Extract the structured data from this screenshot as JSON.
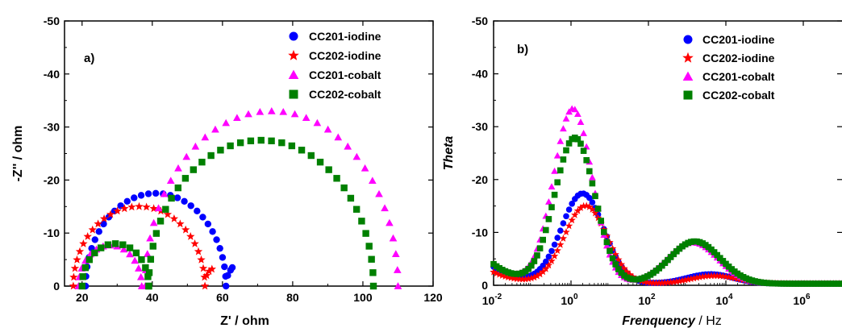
{
  "colors": {
    "CC201-iodine": "#0000ff",
    "CC202-iodine": "#ff0000",
    "CC201-cobalt": "#ff00ff",
    "CC202-cobalt": "#008000"
  },
  "chart_data": [
    {
      "type": "scatter",
      "panel": "a)",
      "xlabel": "Z' / ohm",
      "ylabel": "-Z'' / ohm",
      "xlim": [
        15,
        120
      ],
      "ylim": [
        0,
        -50
      ],
      "xticks": [
        20,
        40,
        60,
        80,
        100,
        120
      ],
      "yticks": [
        0,
        -10,
        -20,
        -30,
        -40,
        -50
      ],
      "legend_position": "top-right",
      "series": [
        {
          "name": "CC201-iodine",
          "marker": "circle",
          "arcs": [
            {
              "x_start": 21,
              "x_end": 61,
              "peak": 17.5,
              "n": 30
            }
          ],
          "tail": [
            [
              61.5,
              2.0
            ],
            [
              62.3,
              3.0
            ],
            [
              62.8,
              3.5
            ]
          ]
        },
        {
          "name": "CC202-iodine",
          "marker": "star",
          "arcs": [
            {
              "x_start": 17.5,
              "x_end": 55,
              "peak": 15,
              "n": 28
            }
          ],
          "tail": [
            [
              55.5,
              2.0
            ],
            [
              56.2,
              2.8
            ],
            [
              57,
              3.2
            ]
          ]
        },
        {
          "name": "CC201-cobalt",
          "marker": "triangle",
          "arcs": [
            {
              "x_start": 19,
              "x_end": 37,
              "peak": 7.7,
              "n": 14
            },
            {
              "x_start": 38,
              "x_end": 110,
              "peak": 33,
              "n": 34
            }
          ],
          "tail": []
        },
        {
          "name": "CC202-cobalt",
          "marker": "square",
          "arcs": [
            {
              "x_start": 20,
              "x_end": 39,
              "peak": 8,
              "n": 14
            },
            {
              "x_start": 39,
              "x_end": 103,
              "peak": 27.5,
              "n": 34
            }
          ],
          "tail": []
        }
      ]
    },
    {
      "type": "scatter",
      "panel": "b)",
      "xlabel_italic": "Frenquency",
      "xlabel_unit": " / Hz",
      "ylabel": "Theta",
      "x_scale": "log",
      "xlim_log10": [
        -2,
        7
      ],
      "ylim": [
        0,
        -50
      ],
      "xticks_log10": [
        -2,
        0,
        2,
        4,
        6
      ],
      "yticks": [
        0,
        -10,
        -20,
        -30,
        -40,
        -50
      ],
      "legend_position": "top-right",
      "series": [
        {
          "name": "CC201-iodine",
          "marker": "circle",
          "baseline": 0.3,
          "start": 3.5,
          "peaks": [
            {
              "log10f": 0.3,
              "height": 17,
              "width": 0.55
            },
            {
              "log10f": 3.6,
              "height": 1.8,
              "width": 0.6
            }
          ]
        },
        {
          "name": "CC202-iodine",
          "marker": "star",
          "baseline": 0.3,
          "start": 2.5,
          "peaks": [
            {
              "log10f": 0.38,
              "height": 14.7,
              "width": 0.55
            },
            {
              "log10f": 3.7,
              "height": 1.5,
              "width": 0.6
            }
          ]
        },
        {
          "name": "CC201-cobalt",
          "marker": "triangle",
          "baseline": 0.3,
          "start": 4,
          "peaks": [
            {
              "log10f": 0.05,
              "height": 33,
              "width": 0.5
            },
            {
              "log10f": 3.15,
              "height": 7.8,
              "width": 0.65
            }
          ]
        },
        {
          "name": "CC202-cobalt",
          "marker": "square",
          "baseline": 0.3,
          "start": 4,
          "peaks": [
            {
              "log10f": 0.1,
              "height": 27.5,
              "width": 0.52
            },
            {
              "log10f": 3.2,
              "height": 8,
              "width": 0.65
            }
          ]
        }
      ]
    }
  ]
}
